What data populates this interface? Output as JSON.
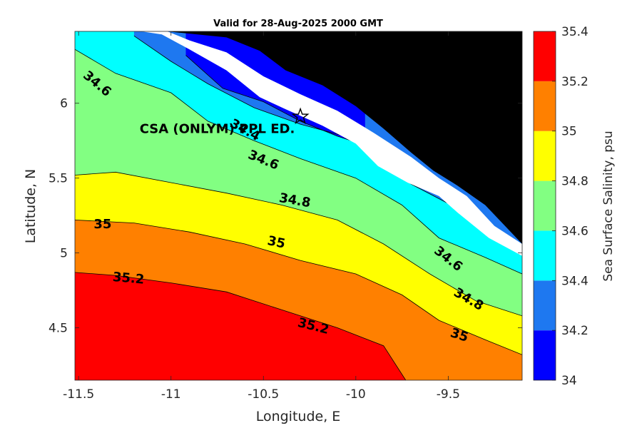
{
  "chart_data": {
    "type": "heatmap",
    "subtype": "filled-contour-map",
    "title": "Valid for 28-Aug-2025 2000 GMT",
    "xlabel": "Longitude, E",
    "ylabel": "Latitude, N",
    "xlim": [
      -11.52,
      -9.1
    ],
    "ylim": [
      4.15,
      6.48
    ],
    "xticks": [
      -11.5,
      -11,
      -10.5,
      -10,
      -9.5
    ],
    "xtick_labels": [
      "-11.5",
      "-11",
      "-10.5",
      "-10",
      "-9.5"
    ],
    "yticks": [
      4.5,
      5,
      5.5,
      6
    ],
    "ytick_labels": [
      "4.5",
      "5",
      "5.5",
      "6"
    ],
    "colorbar": {
      "label": "Sea Surface Salinity, psu",
      "levels": [
        34,
        34.2,
        34.4,
        34.6,
        34.8,
        35,
        35.2,
        35.4
      ],
      "tick_labels": [
        "34",
        "34.2",
        "34.4",
        "34.6",
        "34.8",
        "35",
        "35.2",
        "35.4"
      ],
      "colors": [
        "#0000ff",
        "#1e78f0",
        "#00ffff",
        "#82ff82",
        "#ffff00",
        "#ff8000",
        "#ff0000"
      ]
    },
    "land_color": "#000000",
    "nodata_color": "#ffffff",
    "land_polygon": [
      [
        -11.02,
        6.48
      ],
      [
        -10.7,
        6.44
      ],
      [
        -10.52,
        6.35
      ],
      [
        -10.38,
        6.22
      ],
      [
        -10.18,
        6.12
      ],
      [
        -10.0,
        5.98
      ],
      [
        -9.85,
        5.83
      ],
      [
        -9.7,
        5.67
      ],
      [
        -9.58,
        5.55
      ],
      [
        -9.45,
        5.45
      ],
      [
        -9.3,
        5.32
      ],
      [
        -9.1,
        5.06
      ],
      [
        -9.1,
        6.48
      ]
    ],
    "nodata_polygon": [
      [
        -11.16,
        6.48
      ],
      [
        -11.02,
        6.48
      ],
      [
        -10.9,
        6.42
      ],
      [
        -10.7,
        6.34
      ],
      [
        -10.5,
        6.18
      ],
      [
        -10.3,
        6.06
      ],
      [
        -10.1,
        5.95
      ],
      [
        -9.9,
        5.8
      ],
      [
        -9.7,
        5.64
      ],
      [
        -9.55,
        5.5
      ],
      [
        -9.4,
        5.38
      ],
      [
        -9.25,
        5.18
      ],
      [
        -9.1,
        5.06
      ],
      [
        -9.1,
        4.98
      ],
      [
        -9.28,
        5.1
      ],
      [
        -9.45,
        5.27
      ],
      [
        -9.55,
        5.38
      ],
      [
        -9.72,
        5.47
      ],
      [
        -9.88,
        5.58
      ],
      [
        -10.0,
        5.73
      ],
      [
        -10.18,
        5.85
      ],
      [
        -10.38,
        5.96
      ],
      [
        -10.52,
        6.04
      ],
      [
        -10.7,
        6.22
      ],
      [
        -10.9,
        6.36
      ],
      [
        -11.05,
        6.46
      ]
    ],
    "contour_lines": [
      {
        "level": 35.2,
        "points": [
          [
            -11.52,
            4.87
          ],
          [
            -11.3,
            4.85
          ],
          [
            -11.0,
            4.8
          ],
          [
            -10.7,
            4.74
          ],
          [
            -10.4,
            4.62
          ],
          [
            -10.1,
            4.5
          ],
          [
            -9.85,
            4.38
          ],
          [
            -9.73,
            4.15
          ]
        ]
      },
      {
        "level": 35.0,
        "points": [
          [
            -11.52,
            5.22
          ],
          [
            -11.2,
            5.2
          ],
          [
            -10.9,
            5.14
          ],
          [
            -10.6,
            5.06
          ],
          [
            -10.3,
            4.95
          ],
          [
            -10.0,
            4.86
          ],
          [
            -9.75,
            4.72
          ],
          [
            -9.55,
            4.55
          ],
          [
            -9.3,
            4.42
          ],
          [
            -9.1,
            4.32
          ]
        ]
      },
      {
        "level": 34.8,
        "points": [
          [
            -11.52,
            5.52
          ],
          [
            -11.3,
            5.54
          ],
          [
            -11.0,
            5.47
          ],
          [
            -10.7,
            5.4
          ],
          [
            -10.4,
            5.32
          ],
          [
            -10.1,
            5.22
          ],
          [
            -9.85,
            5.06
          ],
          [
            -9.6,
            4.86
          ],
          [
            -9.35,
            4.68
          ],
          [
            -9.1,
            4.58
          ]
        ]
      },
      {
        "level": 34.6,
        "points": [
          [
            -11.52,
            6.36
          ],
          [
            -11.3,
            6.2
          ],
          [
            -11.0,
            6.07
          ],
          [
            -10.8,
            5.88
          ],
          [
            -10.55,
            5.75
          ],
          [
            -10.3,
            5.63
          ],
          [
            -10.0,
            5.5
          ],
          [
            -9.75,
            5.32
          ],
          [
            -9.55,
            5.1
          ],
          [
            -9.3,
            4.97
          ],
          [
            -9.1,
            4.86
          ]
        ]
      },
      {
        "level": 34.4,
        "points": [
          [
            -11.2,
            6.45
          ],
          [
            -11.0,
            6.28
          ],
          [
            -10.8,
            6.13
          ],
          [
            -10.55,
            5.97
          ],
          [
            -10.3,
            5.86
          ],
          [
            -10.0,
            5.76
          ],
          [
            -9.85,
            5.6
          ],
          [
            -9.7,
            5.46
          ],
          [
            -9.5,
            5.33
          ],
          [
            -9.3,
            5.15
          ],
          [
            -9.1,
            5.02
          ]
        ]
      },
      {
        "level": 34.2,
        "points": [
          [
            -10.92,
            6.32
          ],
          [
            -10.72,
            6.1
          ],
          [
            -10.5,
            6.01
          ],
          [
            -10.3,
            5.88
          ],
          [
            -10.1,
            5.78
          ],
          [
            -9.95,
            5.72
          ]
        ]
      }
    ],
    "contour_labels": [
      {
        "text": "34.6",
        "x": -11.4,
        "y": 6.13,
        "angle": 40
      },
      {
        "text": "34.4",
        "x": -10.6,
        "y": 5.82,
        "angle": 28
      },
      {
        "text": "34.6",
        "x": -10.5,
        "y": 5.62,
        "angle": 22
      },
      {
        "text": "34.8",
        "x": -10.33,
        "y": 5.35,
        "angle": 10
      },
      {
        "text": "35",
        "x": -11.37,
        "y": 5.19,
        "angle": 0
      },
      {
        "text": "35",
        "x": -10.43,
        "y": 5.07,
        "angle": 12
      },
      {
        "text": "35.2",
        "x": -11.23,
        "y": 4.83,
        "angle": 5
      },
      {
        "text": "34.6",
        "x": -9.5,
        "y": 4.96,
        "angle": 38
      },
      {
        "text": "34.8",
        "x": -9.39,
        "y": 4.69,
        "angle": 30
      },
      {
        "text": "35.2",
        "x": -10.23,
        "y": 4.51,
        "angle": 14
      },
      {
        "text": "35",
        "x": -9.44,
        "y": 4.45,
        "angle": 18
      }
    ],
    "station": {
      "name": "CSA (ONLYM) PPL ED.",
      "lon": -10.3,
      "lat": 5.91,
      "label_x": -10.75,
      "label_y": 5.83
    }
  }
}
